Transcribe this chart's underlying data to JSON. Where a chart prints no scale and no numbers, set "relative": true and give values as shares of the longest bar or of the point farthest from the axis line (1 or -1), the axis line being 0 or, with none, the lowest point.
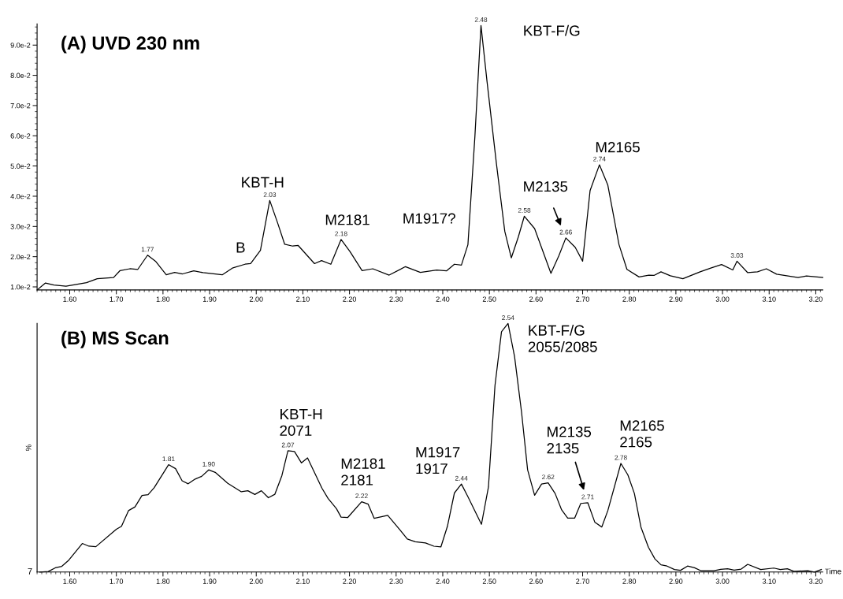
{
  "chart_data": [
    {
      "type": "line",
      "title": "(A) UVD 230 nm",
      "xlim": [
        1.53,
        3.215
      ],
      "xticks": [
        {
          "value": 1.6,
          "label": "1.60"
        },
        {
          "value": 1.7,
          "label": "1.70"
        },
        {
          "value": 1.8,
          "label": "1.80"
        },
        {
          "value": 1.9,
          "label": "1.90"
        },
        {
          "value": 2.0,
          "label": "2.00"
        },
        {
          "value": 2.1,
          "label": "2.10"
        },
        {
          "value": 2.2,
          "label": "2.20"
        },
        {
          "value": 2.3,
          "label": "2.30"
        },
        {
          "value": 2.4,
          "label": "2.40"
        },
        {
          "value": 2.5,
          "label": "2.50"
        },
        {
          "value": 2.6,
          "label": "2.60"
        },
        {
          "value": 2.7,
          "label": "2.70"
        },
        {
          "value": 2.8,
          "label": "2.80"
        },
        {
          "value": 2.9,
          "label": "2.90"
        },
        {
          "value": 3.0,
          "label": "3.00"
        },
        {
          "value": 3.1,
          "label": "3.10"
        },
        {
          "value": 3.2,
          "label": "3.20"
        }
      ],
      "ylim": [
        0.009,
        0.097
      ],
      "yticks": [
        {
          "value": 0.01,
          "label": "1.0e-2"
        },
        {
          "value": 0.02,
          "label": "2.0e-2"
        },
        {
          "value": 0.03,
          "label": "3.0e-2"
        },
        {
          "value": 0.04,
          "label": "4.0e-2"
        },
        {
          "value": 0.05,
          "label": "5.0e-2"
        },
        {
          "value": 0.06,
          "label": "6.0e-2"
        },
        {
          "value": 0.07,
          "label": "7.0e-2"
        },
        {
          "value": 0.08,
          "label": "8.0e-2"
        },
        {
          "value": 0.09,
          "label": "9.0e-2"
        }
      ],
      "grid": false,
      "series": [
        {
          "color": "#000000",
          "x": [
            1.531,
            1.548,
            1.566,
            1.592,
            1.636,
            1.659,
            1.694,
            1.708,
            1.729,
            1.746,
            1.767,
            1.784,
            1.807,
            1.825,
            1.842,
            1.866,
            1.886,
            1.927,
            1.95,
            1.976,
            1.988,
            2.009,
            2.029,
            2.046,
            2.061,
            2.078,
            2.09,
            2.125,
            2.14,
            2.16,
            2.182,
            2.201,
            2.227,
            2.25,
            2.285,
            2.32,
            2.352,
            2.387,
            2.408,
            2.425,
            2.44,
            2.454,
            2.469,
            2.482,
            2.495,
            2.515,
            2.533,
            2.547,
            2.562,
            2.575,
            2.597,
            2.632,
            2.649,
            2.664,
            2.684,
            2.7,
            2.716,
            2.736,
            2.754,
            2.778,
            2.795,
            2.821,
            2.842,
            2.853,
            2.868,
            2.888,
            2.915,
            2.952,
            2.976,
            2.998,
            3.022,
            3.031,
            3.054,
            3.075,
            3.094,
            3.116,
            3.162,
            3.18,
            3.215
          ],
          "values": [
            0.0091,
            0.0113,
            0.0106,
            0.0102,
            0.0114,
            0.0127,
            0.0131,
            0.0154,
            0.016,
            0.0158,
            0.0205,
            0.0185,
            0.014,
            0.0148,
            0.0143,
            0.0153,
            0.0147,
            0.014,
            0.0163,
            0.0175,
            0.0177,
            0.0221,
            0.0386,
            0.0311,
            0.0241,
            0.0235,
            0.0237,
            0.0177,
            0.0187,
            0.0175,
            0.0257,
            0.0217,
            0.0154,
            0.016,
            0.0139,
            0.0167,
            0.0148,
            0.0156,
            0.0153,
            0.0175,
            0.0172,
            0.024,
            0.0599,
            0.0965,
            0.0779,
            0.0509,
            0.0284,
            0.0196,
            0.0265,
            0.0334,
            0.0293,
            0.0145,
            0.0203,
            0.0262,
            0.0231,
            0.0185,
            0.0419,
            0.0504,
            0.0437,
            0.024,
            0.0158,
            0.0133,
            0.0139,
            0.0138,
            0.015,
            0.0137,
            0.0127,
            0.015,
            0.0163,
            0.0174,
            0.0156,
            0.0185,
            0.0147,
            0.015,
            0.016,
            0.0142,
            0.0131,
            0.0136,
            0.0131
          ]
        }
      ],
      "annotations": [
        "KBT-H",
        "B",
        "M2181",
        "M1917?",
        "KBT-F/G",
        "M2135",
        "M2165",
        {
          "text": "1.77",
          "x": 1.767,
          "y": 0.0205
        },
        {
          "text": "2.03",
          "x": 2.029,
          "y": 0.0386
        },
        {
          "text": "2.18",
          "x": 2.182,
          "y": 0.0257
        },
        {
          "text": "2.48",
          "x": 2.482,
          "y": 0.0965
        },
        {
          "text": "2.58",
          "x": 2.575,
          "y": 0.0334
        },
        {
          "text": "2.66",
          "x": 2.664,
          "y": 0.0262
        },
        {
          "text": "2.74",
          "x": 2.736,
          "y": 0.0504
        },
        {
          "text": "3.03",
          "x": 3.031,
          "y": 0.0185
        }
      ]
    },
    {
      "type": "line",
      "title": "(B) MS Scan",
      "xlabel": "Time",
      "ylabel": "%",
      "relative": true,
      "xlim": [
        1.53,
        3.215
      ],
      "xticks": [
        {
          "value": 1.6,
          "label": "1.60"
        },
        {
          "value": 1.7,
          "label": "1.70"
        },
        {
          "value": 1.8,
          "label": "1.80"
        },
        {
          "value": 1.9,
          "label": "1.90"
        },
        {
          "value": 2.0,
          "label": "2.00"
        },
        {
          "value": 2.1,
          "label": "2.10"
        },
        {
          "value": 2.2,
          "label": "2.20"
        },
        {
          "value": 2.3,
          "label": "2.30"
        },
        {
          "value": 2.4,
          "label": "2.40"
        },
        {
          "value": 2.5,
          "label": "2.50"
        },
        {
          "value": 2.6,
          "label": "2.60"
        },
        {
          "value": 2.7,
          "label": "2.70"
        },
        {
          "value": 2.8,
          "label": "2.80"
        },
        {
          "value": 2.9,
          "label": "2.90"
        },
        {
          "value": 3.0,
          "label": "3.00"
        },
        {
          "value": 3.1,
          "label": "3.10"
        },
        {
          "value": 3.2,
          "label": "3.20"
        }
      ],
      "grid": false,
      "series": [
        {
          "color": "#000000",
          "x": [
            1.536,
            1.554,
            1.569,
            1.583,
            1.598,
            1.627,
            1.641,
            1.656,
            1.7,
            1.711,
            1.726,
            1.74,
            1.755,
            1.768,
            1.781,
            1.812,
            1.827,
            1.841,
            1.854,
            1.869,
            1.883,
            1.898,
            1.912,
            1.939,
            1.968,
            1.982,
            1.997,
            2.011,
            2.026,
            2.04,
            2.055,
            2.068,
            2.082,
            2.097,
            2.11,
            2.141,
            2.154,
            2.172,
            2.182,
            2.196,
            2.226,
            2.24,
            2.253,
            2.282,
            2.309,
            2.324,
            2.341,
            2.363,
            2.381,
            2.396,
            2.41,
            2.425,
            2.44,
            2.454,
            2.483,
            2.498,
            2.512,
            2.526,
            2.54,
            2.554,
            2.569,
            2.582,
            2.597,
            2.612,
            2.626,
            2.641,
            2.655,
            2.668,
            2.683,
            2.696,
            2.711,
            2.726,
            2.741,
            2.754,
            2.782,
            2.797,
            2.811,
            2.825,
            2.841,
            2.855,
            2.868,
            2.881,
            2.897,
            2.91,
            2.925,
            2.94,
            2.954,
            2.982,
            2.996,
            3.011,
            3.025,
            3.04,
            3.054,
            3.082,
            3.11,
            3.124,
            3.139,
            3.153,
            3.183,
            3.197,
            3.212
          ],
          "values": [
            0,
            0.002,
            0.017,
            0.023,
            0.048,
            0.115,
            0.104,
            0.102,
            0.172,
            0.184,
            0.247,
            0.262,
            0.308,
            0.311,
            0.339,
            0.432,
            0.416,
            0.367,
            0.355,
            0.374,
            0.385,
            0.411,
            0.401,
            0.357,
            0.323,
            0.327,
            0.312,
            0.327,
            0.299,
            0.313,
            0.388,
            0.488,
            0.485,
            0.439,
            0.459,
            0.337,
            0.296,
            0.255,
            0.221,
            0.219,
            0.283,
            0.273,
            0.216,
            0.228,
            0.168,
            0.133,
            0.122,
            0.117,
            0.104,
            0.101,
            0.184,
            0.318,
            0.354,
            0.303,
            0.192,
            0.342,
            0.75,
            0.967,
            1.0,
            0.867,
            0.643,
            0.411,
            0.309,
            0.354,
            0.359,
            0.316,
            0.25,
            0.217,
            0.217,
            0.276,
            0.279,
            0.201,
            0.181,
            0.247,
            0.437,
            0.391,
            0.316,
            0.181,
            0.1,
            0.053,
            0.029,
            0.024,
            0.01,
            0.007,
            0.024,
            0.017,
            0.005,
            0.005,
            0.011,
            0.013,
            0.008,
            0.012,
            0.031,
            0.01,
            0.016,
            0.01,
            0.013,
            0.003,
            0.005,
            0,
            0.01
          ]
        }
      ],
      "annotations": [
        "7",
        "KBT-H\n2071",
        "M2181\n2181",
        "M1917\n1917",
        "KBT-F/G\n2055/2085",
        "M2135\n2135",
        "M2165\n2165",
        {
          "text": "1.81",
          "x": 1.812,
          "y": 0.432
        },
        {
          "text": "1.90",
          "x": 1.898,
          "y": 0.411
        },
        {
          "text": "2.07",
          "x": 2.068,
          "y": 0.488
        },
        {
          "text": "2.22",
          "x": 2.226,
          "y": 0.283
        },
        {
          "text": "2.44",
          "x": 2.44,
          "y": 0.354
        },
        {
          "text": "2.54",
          "x": 2.54,
          "y": 1.0
        },
        {
          "text": "2.62",
          "x": 2.626,
          "y": 0.359
        },
        {
          "text": "2.71",
          "x": 2.711,
          "y": 0.279
        },
        {
          "text": "2.78",
          "x": 2.782,
          "y": 0.437
        }
      ]
    }
  ]
}
